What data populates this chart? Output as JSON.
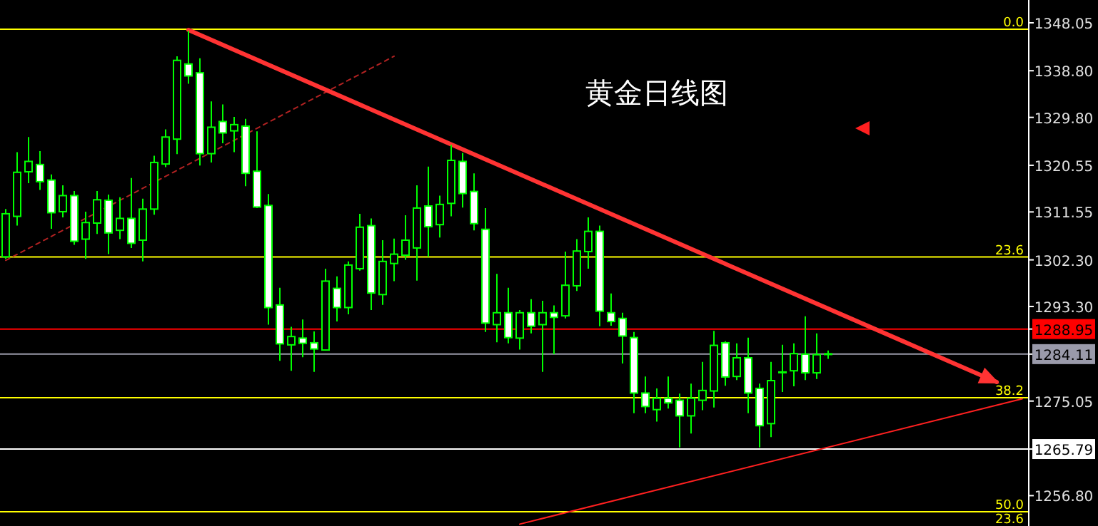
{
  "chart_data": {
    "type": "candlestick",
    "title": "黄金日线图",
    "color": "#00ff00",
    "tick_labels": "y",
    "categories": [
      null,
      null,
      null,
      null,
      null,
      null,
      null,
      null,
      null,
      null,
      null,
      null,
      null,
      null,
      null,
      null,
      null,
      null,
      null,
      null,
      null,
      null,
      null,
      null,
      null,
      null,
      null,
      null,
      null,
      null,
      null,
      null,
      null,
      null,
      null,
      null,
      null,
      null,
      null,
      null,
      null,
      null,
      null,
      null,
      null,
      null,
      null,
      null,
      null,
      null,
      null,
      null,
      null,
      null,
      null,
      null,
      null,
      null,
      null,
      null,
      null,
      null,
      null,
      null,
      null,
      null,
      null,
      null,
      null,
      null,
      null,
      null,
      null,
      null,
      null,
      null,
      null,
      null,
      null,
      null,
      null,
      null,
      null,
      null,
      null,
      null,
      null,
      null,
      null,
      null
    ],
    "ohlc": [
      [
        1302.9,
        1312.1,
        1302.5,
        1311.2
      ],
      [
        1310.7,
        1323.1,
        1308.9,
        1319.2
      ],
      [
        1319.3,
        1326.0,
        1317.1,
        1321.3
      ],
      [
        1320.7,
        1323.3,
        1315.8,
        1317.4
      ],
      [
        1317.7,
        1318.8,
        1308.3,
        1311.4
      ],
      [
        1311.6,
        1316.7,
        1310.5,
        1314.7
      ],
      [
        1314.7,
        1315.6,
        1305.2,
        1305.9
      ],
      [
        1306.3,
        1311.6,
        1302.5,
        1309.5
      ],
      [
        1309.4,
        1315.6,
        1307.3,
        1313.9
      ],
      [
        1313.8,
        1314.9,
        1303.4,
        1307.5
      ],
      [
        1308.0,
        1314.4,
        1306.3,
        1310.3
      ],
      [
        1310.3,
        1318.1,
        1304.6,
        1305.5
      ],
      [
        1306.1,
        1314.1,
        1302.0,
        1312.1
      ],
      [
        1312.1,
        1322.4,
        1311.0,
        1321.1
      ],
      [
        1320.8,
        1327.5,
        1320.2,
        1326.0
      ],
      [
        1325.6,
        1341.6,
        1322.7,
        1340.8
      ],
      [
        1340.1,
        1346.5,
        1336.3,
        1337.8
      ],
      [
        1338.4,
        1341.2,
        1320.5,
        1322.8
      ],
      [
        1322.8,
        1332.9,
        1321.1,
        1327.9
      ],
      [
        1329.0,
        1332.3,
        1324.8,
        1326.8
      ],
      [
        1327.2,
        1329.9,
        1323.1,
        1328.4
      ],
      [
        1328.1,
        1329.5,
        1316.5,
        1319.0
      ],
      [
        1319.4,
        1327.1,
        1312.3,
        1312.5
      ],
      [
        1312.8,
        1315.0,
        1289.8,
        1293.1
      ],
      [
        1293.6,
        1296.9,
        1282.8,
        1286.1
      ],
      [
        1285.9,
        1289.4,
        1280.9,
        1287.5
      ],
      [
        1287.2,
        1290.8,
        1283.5,
        1286.2
      ],
      [
        1286.3,
        1288.5,
        1280.7,
        1285.1
      ],
      [
        1284.9,
        1300.6,
        1284.8,
        1298.2
      ],
      [
        1296.8,
        1299.1,
        1290.4,
        1293.1
      ],
      [
        1293.1,
        1302.0,
        1291.8,
        1301.3
      ],
      [
        1300.6,
        1311.2,
        1300.2,
        1308.6
      ],
      [
        1308.9,
        1310.3,
        1292.6,
        1295.9
      ],
      [
        1295.6,
        1306.1,
        1293.6,
        1302.0
      ],
      [
        1301.6,
        1306.4,
        1298.2,
        1303.4
      ],
      [
        1303.2,
        1310.9,
        1302.3,
        1306.1
      ],
      [
        1304.6,
        1316.7,
        1298.3,
        1312.3
      ],
      [
        1312.7,
        1320.3,
        1302.9,
        1308.7
      ],
      [
        1309.1,
        1314.7,
        1306.6,
        1313.0
      ],
      [
        1313.2,
        1324.5,
        1310.7,
        1321.5
      ],
      [
        1321.3,
        1322.9,
        1312.4,
        1315.1
      ],
      [
        1315.5,
        1319.0,
        1308.0,
        1309.3
      ],
      [
        1308.2,
        1312.3,
        1288.4,
        1290.1
      ],
      [
        1289.8,
        1299.6,
        1286.4,
        1292.1
      ],
      [
        1292.1,
        1296.9,
        1286.2,
        1287.3
      ],
      [
        1287.2,
        1292.6,
        1285.0,
        1292.1
      ],
      [
        1292.1,
        1294.7,
        1288.1,
        1289.5
      ],
      [
        1289.8,
        1294.4,
        1280.7,
        1292.1
      ],
      [
        1292.1,
        1293.5,
        1284.1,
        1291.2
      ],
      [
        1291.5,
        1303.9,
        1291.0,
        1297.4
      ],
      [
        1297.3,
        1306.3,
        1296.3,
        1304.0
      ],
      [
        1303.9,
        1310.5,
        1300.6,
        1307.8
      ],
      [
        1307.8,
        1308.9,
        1289.5,
        1292.4
      ],
      [
        1292.1,
        1295.8,
        1289.6,
        1290.4
      ],
      [
        1291.0,
        1292.1,
        1282.3,
        1287.6
      ],
      [
        1287.3,
        1288.4,
        1272.7,
        1276.6
      ],
      [
        1276.6,
        1279.8,
        1272.7,
        1274.0
      ],
      [
        1273.4,
        1277.5,
        1271.1,
        1275.6
      ],
      [
        1275.6,
        1279.8,
        1273.6,
        1274.7
      ],
      [
        1275.2,
        1276.5,
        1266.1,
        1272.2
      ],
      [
        1272.2,
        1278.4,
        1268.8,
        1275.6
      ],
      [
        1275.2,
        1282.6,
        1273.3,
        1277.1
      ],
      [
        1277.0,
        1288.6,
        1273.8,
        1285.8
      ],
      [
        1286.3,
        1286.6,
        1278.0,
        1279.7
      ],
      [
        1279.8,
        1286.2,
        1279.1,
        1283.4
      ],
      [
        1283.4,
        1287.3,
        1272.7,
        1276.6
      ],
      [
        1277.5,
        1278.4,
        1266.1,
        1270.3
      ],
      [
        1270.7,
        1282.6,
        1268.1,
        1279.0
      ],
      [
        1280.4,
        1285.9,
        1276.8,
        1280.6
      ],
      [
        1280.9,
        1286.2,
        1277.9,
        1284.2
      ],
      [
        1284.1,
        1291.4,
        1279.1,
        1280.5
      ],
      [
        1280.5,
        1288.1,
        1279.3,
        1284.0
      ],
      [
        1284.1,
        1284.8,
        1283.2,
        1284.1
      ],
      null,
      null,
      null,
      null,
      null,
      null,
      null,
      null,
      null,
      null,
      null,
      null,
      null,
      null,
      null,
      null,
      null
    ],
    "series": [
      {
        "type": "line",
        "values": [
          null,
          null,
          null,
          null,
          null,
          null,
          null,
          null,
          null,
          null,
          null,
          null,
          null,
          null,
          null,
          null,
          null,
          null,
          null,
          null,
          null,
          null,
          null,
          null,
          null,
          null,
          null,
          null,
          null,
          null,
          null,
          null,
          null,
          null,
          null,
          null,
          null,
          null,
          null,
          null,
          null,
          null,
          null,
          null,
          null,
          1251.3,
          null,
          null,
          null,
          null,
          null,
          null,
          null,
          null,
          null,
          null,
          null,
          null,
          null,
          null,
          null,
          null,
          null,
          null,
          null,
          null,
          null,
          null,
          null,
          null,
          null,
          null,
          null,
          null,
          null,
          null,
          null,
          null,
          null,
          null,
          null,
          null,
          null,
          null,
          null,
          null,
          null,
          null,
          null,
          1275.5
        ],
        "color": "#ff2020",
        "line_style": "solid"
      },
      {
        "type": "line",
        "values": [
          1302.2,
          null,
          null,
          null,
          null,
          null,
          null,
          null,
          null,
          null,
          null,
          null,
          null,
          null,
          null,
          null,
          null,
          null,
          null,
          null,
          null,
          null,
          null,
          null,
          null,
          null,
          null,
          null,
          null,
          null,
          null,
          null,
          null,
          null,
          1341.6,
          null,
          null,
          null,
          null,
          null,
          null,
          null,
          null,
          null,
          null,
          null,
          null,
          null,
          null,
          null,
          null,
          null,
          null,
          null,
          null,
          null,
          null,
          null,
          null,
          null,
          null,
          null,
          null,
          null,
          null,
          null,
          null,
          null,
          null,
          null,
          null,
          null,
          null,
          null,
          null,
          null,
          null,
          null,
          null,
          null,
          null,
          null,
          null,
          null,
          null,
          null,
          null,
          null,
          null,
          null
        ],
        "color": "#b22222",
        "line_style": "dashed"
      }
    ],
    "ylim": [
      1250.94,
      1352.45
    ],
    "annotations": [
      {
        "text": "0.0",
        "y": 1346.8
      },
      {
        "text": "23.6",
        "y": 1302.85
      },
      {
        "text": "38.2",
        "y": 1275.7
      },
      {
        "text": "50.0",
        "y": 1253.7
      },
      "23.6"
    ],
    "yticks": [
      1348.05,
      {
        "value": 1338.8,
        "label": "1338.80"
      },
      {
        "value": 1329.8,
        "label": "1329.80"
      },
      1320.55,
      1311.55,
      {
        "value": 1302.3,
        "label": "1302.30"
      },
      {
        "value": 1293.3,
        "label": "1293.30"
      },
      1288.95,
      1284.11,
      1275.05,
      1265.79,
      {
        "value": 1256.8,
        "label": "1256.80"
      }
    ],
    "ref_lines": [
      {
        "axis": "y",
        "value": 1346.8,
        "color": "#ffff00"
      },
      {
        "axis": "y",
        "value": 1302.85,
        "color": "#ffff00"
      },
      {
        "axis": "y",
        "value": 1288.95,
        "color": "#ff0000"
      },
      {
        "axis": "y",
        "value": 1284.11,
        "color": "#9a9aaa"
      },
      {
        "axis": "y",
        "value": 1275.7,
        "color": "#ffff00"
      },
      {
        "axis": "y",
        "value": 1265.79,
        "color": "#ffffff"
      },
      {
        "axis": "y",
        "value": 1253.7,
        "color": "#ffff00"
      }
    ]
  }
}
